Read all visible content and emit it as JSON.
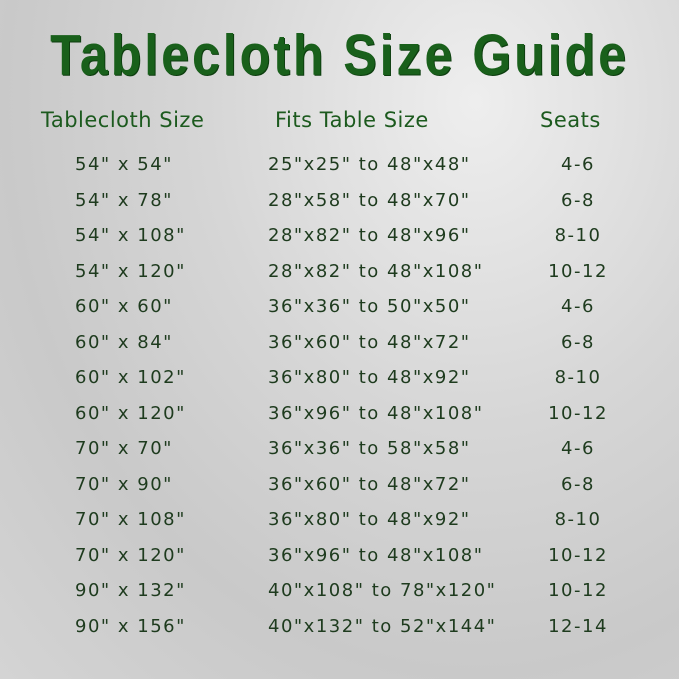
{
  "title": "Tablecloth Size Guide",
  "headers": {
    "size": "Tablecloth Size",
    "fits": "Fits Table Size",
    "seats": "Seats"
  },
  "colors": {
    "title": "#19601b",
    "header": "#1c5a1e",
    "text": "#1e3b1e"
  },
  "rows": [
    {
      "size": "54\" x 54\"",
      "fits": "25\"x25\" to 48\"x48\"",
      "seats": "4-6"
    },
    {
      "size": "54\" x 78\"",
      "fits": "28\"x58\" to 48\"x70\"",
      "seats": "6-8"
    },
    {
      "size": "54\" x 108\"",
      "fits": "28\"x82\" to 48\"x96\"",
      "seats": "8-10"
    },
    {
      "size": "54\" x 120\"",
      "fits": "28\"x82\" to 48\"x108\"",
      "seats": "10-12"
    },
    {
      "size": "60\" x 60\"",
      "fits": "36\"x36\" to 50\"x50\"",
      "seats": "4-6"
    },
    {
      "size": "60\" x 84\"",
      "fits": "36\"x60\" to 48\"x72\"",
      "seats": "6-8"
    },
    {
      "size": "60\" x 102\"",
      "fits": "36\"x80\" to 48\"x92\"",
      "seats": "8-10"
    },
    {
      "size": "60\" x 120\"",
      "fits": "36\"x96\" to 48\"x108\"",
      "seats": "10-12"
    },
    {
      "size": "70\" x 70\"",
      "fits": "36\"x36\" to 58\"x58\"",
      "seats": "4-6"
    },
    {
      "size": "70\" x 90\"",
      "fits": "36\"x60\" to 48\"x72\"",
      "seats": "6-8"
    },
    {
      "size": "70\" x 108\"",
      "fits": "36\"x80\" to 48\"x92\"",
      "seats": "8-10"
    },
    {
      "size": "70\" x 120\"",
      "fits": "36\"x96\" to 48\"x108\"",
      "seats": "10-12"
    },
    {
      "size": "90\" x 132\"",
      "fits": "40\"x108\" to 78\"x120\"",
      "seats": "10-12"
    },
    {
      "size": "90\" x 156\"",
      "fits": "40\"x132\" to 52\"x144\"",
      "seats": "12-14"
    }
  ]
}
